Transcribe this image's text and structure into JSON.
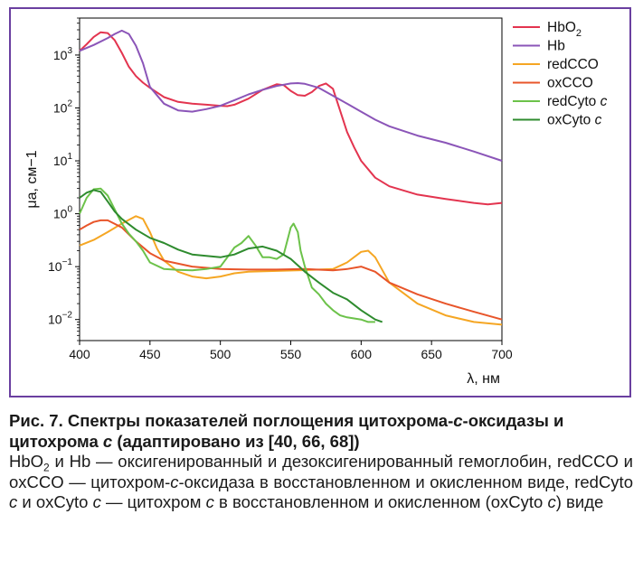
{
  "chart_data": {
    "type": "line",
    "y_scale": "log",
    "xlim": [
      400,
      700
    ],
    "ylim": [
      0.004,
      5000
    ],
    "xlabel": "λ, нм",
    "ylabel": "μa, см−1",
    "x_ticks": [
      "400",
      "450",
      "500",
      "550",
      "600",
      "650",
      "700"
    ],
    "y_ticks": [
      {
        "base": "10",
        "exp": "3",
        "value": 1000
      },
      {
        "base": "10",
        "exp": "2",
        "value": 100
      },
      {
        "base": "10",
        "exp": "1",
        "value": 10
      },
      {
        "base": "10",
        "exp": "0",
        "value": 1
      },
      {
        "base": "10",
        "exp": "−1",
        "value": 0.1
      },
      {
        "base": "10",
        "exp": "−2",
        "value": 0.01
      }
    ],
    "legend": "top-right",
    "series": [
      {
        "name": "HbO2",
        "label": "HbO",
        "sub": "2",
        "italic": false,
        "color": "#e3344f",
        "x": [
          400,
          405,
          410,
          415,
          420,
          425,
          430,
          435,
          440,
          445,
          450,
          460,
          470,
          480,
          490,
          500,
          505,
          510,
          520,
          530,
          540,
          545,
          550,
          555,
          560,
          565,
          570,
          575,
          580,
          585,
          590,
          595,
          600,
          610,
          620,
          640,
          660,
          680,
          690,
          700
        ],
        "y": [
          1200,
          1600,
          2200,
          2700,
          2600,
          1900,
          1100,
          600,
          400,
          300,
          240,
          160,
          130,
          120,
          115,
          110,
          108,
          115,
          150,
          220,
          280,
          270,
          210,
          175,
          170,
          200,
          260,
          290,
          230,
          90,
          35,
          18,
          10,
          4.8,
          3.3,
          2.3,
          1.9,
          1.6,
          1.5,
          1.6
        ]
      },
      {
        "name": "Hb",
        "label": "Hb",
        "sub": "",
        "italic": false,
        "color": "#8b55b8",
        "x": [
          400,
          410,
          420,
          425,
          430,
          435,
          440,
          445,
          450,
          460,
          470,
          480,
          490,
          500,
          510,
          520,
          530,
          540,
          550,
          555,
          560,
          570,
          580,
          590,
          600,
          610,
          620,
          640,
          660,
          680,
          700
        ],
        "y": [
          1200,
          1550,
          2100,
          2500,
          2900,
          2500,
          1500,
          700,
          250,
          120,
          90,
          85,
          95,
          110,
          140,
          180,
          220,
          260,
          290,
          295,
          285,
          240,
          170,
          120,
          85,
          60,
          45,
          30,
          22,
          15,
          10
        ]
      },
      {
        "name": "redCCO",
        "label": "redCCO",
        "sub": "",
        "italic": false,
        "color": "#f5a623",
        "x": [
          400,
          410,
          420,
          430,
          440,
          445,
          450,
          455,
          460,
          470,
          480,
          490,
          500,
          510,
          520,
          540,
          560,
          580,
          590,
          600,
          605,
          610,
          620,
          640,
          660,
          680,
          700
        ],
        "y": [
          0.25,
          0.32,
          0.45,
          0.65,
          0.9,
          0.8,
          0.45,
          0.22,
          0.13,
          0.08,
          0.065,
          0.06,
          0.065,
          0.075,
          0.08,
          0.083,
          0.086,
          0.09,
          0.12,
          0.19,
          0.2,
          0.15,
          0.05,
          0.02,
          0.012,
          0.009,
          0.008
        ]
      },
      {
        "name": "oxCCO",
        "label": "oxCCO",
        "sub": "",
        "italic": false,
        "color": "#e8552a",
        "x": [
          400,
          405,
          410,
          415,
          420,
          430,
          440,
          450,
          460,
          480,
          500,
          520,
          540,
          560,
          580,
          590,
          600,
          610,
          620,
          640,
          660,
          680,
          700
        ],
        "y": [
          0.5,
          0.6,
          0.7,
          0.75,
          0.75,
          0.55,
          0.3,
          0.18,
          0.13,
          0.1,
          0.09,
          0.088,
          0.088,
          0.09,
          0.085,
          0.09,
          0.1,
          0.08,
          0.05,
          0.03,
          0.02,
          0.014,
          0.01
        ]
      },
      {
        "name": "redCyto c",
        "label": "redCyto ",
        "sub": "c",
        "italic": true,
        "color": "#6cc24a",
        "x": [
          400,
          405,
          410,
          415,
          420,
          425,
          430,
          435,
          440,
          445,
          450,
          460,
          470,
          480,
          490,
          500,
          505,
          510,
          515,
          520,
          525,
          530,
          535,
          540,
          545,
          550,
          552,
          555,
          557,
          560,
          565,
          570,
          575,
          580,
          585,
          590,
          600,
          605,
          610
        ],
        "y": [
          1.0,
          2.0,
          2.9,
          3.0,
          2.2,
          1.2,
          0.65,
          0.42,
          0.3,
          0.2,
          0.12,
          0.09,
          0.087,
          0.085,
          0.09,
          0.1,
          0.15,
          0.23,
          0.28,
          0.38,
          0.25,
          0.15,
          0.15,
          0.14,
          0.17,
          0.55,
          0.65,
          0.45,
          0.2,
          0.1,
          0.04,
          0.03,
          0.02,
          0.015,
          0.012,
          0.011,
          0.01,
          0.009,
          0.009
        ]
      },
      {
        "name": "oxCyto c",
        "label": "oxCyto ",
        "sub": "c",
        "italic": true,
        "color": "#2e8b2e",
        "x": [
          400,
          405,
          410,
          415,
          420,
          425,
          430,
          440,
          450,
          460,
          470,
          480,
          490,
          500,
          510,
          520,
          530,
          540,
          550,
          560,
          570,
          580,
          590,
          600,
          610,
          615
        ],
        "y": [
          2.0,
          2.5,
          2.8,
          2.6,
          1.7,
          1.1,
          0.8,
          0.5,
          0.35,
          0.28,
          0.21,
          0.17,
          0.16,
          0.15,
          0.17,
          0.22,
          0.24,
          0.2,
          0.14,
          0.08,
          0.05,
          0.032,
          0.024,
          0.015,
          0.01,
          0.009
        ]
      }
    ]
  },
  "caption": {
    "title_prefix": "Рис. 7. Спектры показателей поглощения цитохрома-",
    "title_c1": "с",
    "title_mid": "-оксидазы и цитохрома ",
    "title_c2": "с",
    "title_suffix": " (адаптировано из [40, 66, 68])",
    "desc_1": "HbO",
    "desc_sub": "2",
    "desc_2": " и Hb — оксигенированный и дезоксигенированный гемоглобин, redCCO и oxCCO — цитохром-",
    "desc_c1": "с",
    "desc_3": "-оксидаза в восстановленном и окисленном виде, redCyto ",
    "desc_c2": "с",
    "desc_4": " и oxCyto ",
    "desc_c3": "с",
    "desc_5": " — цитохром ",
    "desc_c4": "с",
    "desc_6": " в восстановленном и окисленном (oxCyto ",
    "desc_c5": "с",
    "desc_7": ") виде"
  }
}
